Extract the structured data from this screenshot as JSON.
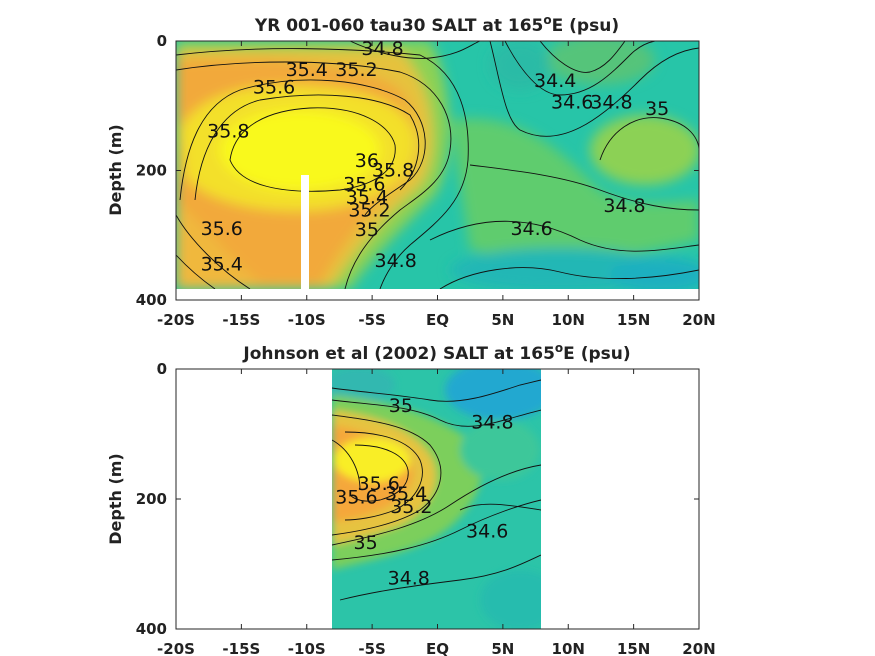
{
  "chart_data": [
    {
      "type": "heatmap",
      "title": "YR 001-060 tau30 SALT at 165",
      "title_sup": "o",
      "title_end": "E (psu)",
      "ylabel": "Depth (m)",
      "xlabel": "",
      "xticks": [
        "-20S",
        "-15S",
        "-10S",
        "-5S",
        "EQ",
        "5N",
        "10N",
        "15N",
        "20N"
      ],
      "xtick_values": [
        -20,
        -15,
        -10,
        -5,
        0,
        5,
        10,
        15,
        20
      ],
      "yticks": [
        "0",
        "200",
        "400"
      ],
      "ytick_values": [
        0,
        200,
        400
      ],
      "xlim": [
        -20,
        20
      ],
      "ylim": [
        400,
        0
      ],
      "colors": {
        "low": "#1e9fd6",
        "mid": "#27c5a8",
        "green": "#8cd154",
        "orange": "#f5a53a",
        "high": "#f9f91a"
      },
      "features": [
        {
          "kind": "max",
          "lat": -10,
          "depth": 160,
          "value": 36.1
        },
        {
          "kind": "max",
          "lat": -17,
          "depth": 300,
          "value": 35.6
        },
        {
          "kind": "max",
          "lat": 17,
          "depth": 170,
          "value": 35.05
        },
        {
          "kind": "min",
          "lat": 6,
          "depth": 40,
          "value": 34.35
        },
        {
          "kind": "min",
          "lat": 12,
          "depth": 380,
          "value": 34.55
        },
        {
          "kind": "min",
          "lat": -10,
          "depth": 20,
          "value": 35.2
        }
      ],
      "contour_labels": [
        {
          "text": "34.8",
          "lat": -4.2,
          "depth": 12
        },
        {
          "text": "35.4",
          "lat": -10,
          "depth": 45
        },
        {
          "text": "35.2",
          "lat": -6.2,
          "depth": 45
        },
        {
          "text": "35.6",
          "lat": -12.5,
          "depth": 72
        },
        {
          "text": "35.8",
          "lat": -16,
          "depth": 140
        },
        {
          "text": "36",
          "lat": -5.4,
          "depth": 185
        },
        {
          "text": "35.8",
          "lat": -3.4,
          "depth": 200
        },
        {
          "text": "35.6",
          "lat": -5.6,
          "depth": 222
        },
        {
          "text": "35.4",
          "lat": -5.4,
          "depth": 242
        },
        {
          "text": "35.2",
          "lat": -5.2,
          "depth": 262
        },
        {
          "text": "35",
          "lat": -5.4,
          "depth": 292
        },
        {
          "text": "35.6",
          "lat": -16.5,
          "depth": 290
        },
        {
          "text": "35.4",
          "lat": -16.5,
          "depth": 345
        },
        {
          "text": "34.8",
          "lat": -3.2,
          "depth": 340
        },
        {
          "text": "34.6",
          "lat": 7.2,
          "depth": 290
        },
        {
          "text": "34.8",
          "lat": 14.3,
          "depth": 255
        },
        {
          "text": "34.4",
          "lat": 9,
          "depth": 62
        },
        {
          "text": "34.6",
          "lat": 10.3,
          "depth": 95
        },
        {
          "text": "34.8",
          "lat": 13.3,
          "depth": 95
        },
        {
          "text": "35",
          "lat": 16.8,
          "depth": 105
        }
      ],
      "masked": [
        {
          "lat_min": -10.3,
          "lat_max": -9.7,
          "depth_min": 210,
          "depth_max": 400
        }
      ]
    },
    {
      "type": "heatmap",
      "title": "Johnson et al (2002) SALT at 165",
      "title_sup": "o",
      "title_end": "E (psu)",
      "ylabel": "Depth (m)",
      "xlabel": "",
      "xticks": [
        "-20S",
        "-15S",
        "-10S",
        "-5S",
        "EQ",
        "5N",
        "10N",
        "15N",
        "20N"
      ],
      "xtick_values": [
        -20,
        -15,
        -10,
        -5,
        0,
        5,
        10,
        15,
        20
      ],
      "yticks": [
        "0",
        "200",
        "400"
      ],
      "ytick_values": [
        0,
        200,
        400
      ],
      "xlim": [
        -20,
        20
      ],
      "ylim": [
        400,
        0
      ],
      "data_lat_range": [
        -8,
        8
      ],
      "colors": {
        "low": "#1e9fd6",
        "mid": "#27c5a8",
        "green": "#8cd154",
        "orange": "#f5a53a",
        "high": "#f9f91a"
      },
      "features": [
        {
          "kind": "max",
          "lat": -5.5,
          "depth": 150,
          "value": 35.85
        },
        {
          "kind": "min",
          "lat": 7.5,
          "depth": 20,
          "value": 34.25
        },
        {
          "kind": "min",
          "lat": -7,
          "depth": 15,
          "value": 34.55
        },
        {
          "kind": "min",
          "lat": 6,
          "depth": 330,
          "value": 34.6
        }
      ],
      "contour_labels": [
        {
          "text": "35",
          "lat": -2.8,
          "depth": 57
        },
        {
          "text": "34.8",
          "lat": 4.2,
          "depth": 82
        },
        {
          "text": "35.6",
          "lat": -4.5,
          "depth": 177
        },
        {
          "text": "35.4",
          "lat": -2.4,
          "depth": 192
        },
        {
          "text": "35.2",
          "lat": -2,
          "depth": 212
        },
        {
          "text": "35.6",
          "lat": -6.2,
          "depth": 198
        },
        {
          "text": "34.6",
          "lat": 3.8,
          "depth": 250
        },
        {
          "text": "35",
          "lat": -5.5,
          "depth": 268
        },
        {
          "text": "34.8",
          "lat": -2.2,
          "depth": 322
        }
      ]
    }
  ]
}
